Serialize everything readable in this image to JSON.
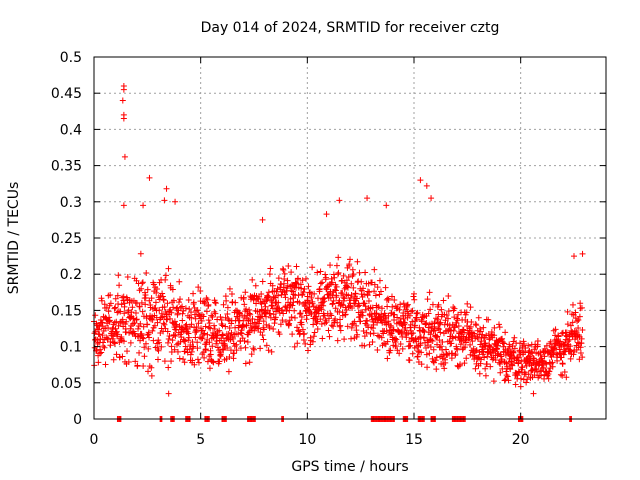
{
  "chart_data": {
    "type": "scatter",
    "title": "Day 014 of 2024, SRMTID for receiver cztg",
    "xlabel": "GPS time / hours",
    "ylabel": "SRMTID / TECUs",
    "xlim": [
      0,
      24
    ],
    "ylim": [
      0,
      0.5
    ],
    "xticks": [
      0,
      5,
      10,
      15,
      20
    ],
    "xtick_labels": [
      "0",
      "5",
      "10",
      "15",
      "20"
    ],
    "yticks": [
      0,
      0.05,
      0.1,
      0.15,
      0.2,
      0.25,
      0.3,
      0.35,
      0.4,
      0.45,
      0.5
    ],
    "ytick_labels": [
      "0",
      "0.05",
      "0.1",
      "0.15",
      "0.2",
      "0.25",
      "0.3",
      "0.35",
      "0.4",
      "0.45",
      "0.5"
    ],
    "grid": true,
    "marker": "+",
    "marker_color": "#ff0000",
    "series": [
      {
        "name": "SRMTID",
        "envelope_hours": [
          0,
          1,
          2,
          3,
          4,
          5,
          6,
          7,
          8,
          9,
          10,
          11,
          12,
          13,
          14,
          15,
          16,
          17,
          18,
          19,
          20,
          21,
          22,
          23
        ],
        "envelope_median": [
          0.12,
          0.13,
          0.14,
          0.14,
          0.13,
          0.12,
          0.12,
          0.13,
          0.15,
          0.16,
          0.15,
          0.16,
          0.17,
          0.15,
          0.13,
          0.12,
          0.12,
          0.12,
          0.1,
          0.09,
          0.08,
          0.08,
          0.1,
          0.12
        ],
        "envelope_spread": [
          0.04,
          0.05,
          0.07,
          0.07,
          0.06,
          0.05,
          0.05,
          0.05,
          0.05,
          0.05,
          0.05,
          0.06,
          0.05,
          0.05,
          0.04,
          0.05,
          0.05,
          0.05,
          0.04,
          0.04,
          0.03,
          0.03,
          0.04,
          0.05
        ],
        "outliers": [
          {
            "x": 1.4,
            "y": 0.46
          },
          {
            "x": 1.4,
            "y": 0.455
          },
          {
            "x": 1.35,
            "y": 0.44
          },
          {
            "x": 1.4,
            "y": 0.42
          },
          {
            "x": 1.4,
            "y": 0.415
          },
          {
            "x": 1.45,
            "y": 0.362
          },
          {
            "x": 1.4,
            "y": 0.295
          },
          {
            "x": 2.6,
            "y": 0.333
          },
          {
            "x": 3.4,
            "y": 0.318
          },
          {
            "x": 3.3,
            "y": 0.302
          },
          {
            "x": 2.3,
            "y": 0.295
          },
          {
            "x": 3.8,
            "y": 0.3
          },
          {
            "x": 10.9,
            "y": 0.283
          },
          {
            "x": 12.8,
            "y": 0.305
          },
          {
            "x": 13.7,
            "y": 0.295
          },
          {
            "x": 15.3,
            "y": 0.33
          },
          {
            "x": 15.6,
            "y": 0.322
          },
          {
            "x": 15.8,
            "y": 0.305
          },
          {
            "x": 22.5,
            "y": 0.225
          },
          {
            "x": 22.9,
            "y": 0.228
          },
          {
            "x": 7.9,
            "y": 0.275
          },
          {
            "x": 11.5,
            "y": 0.302
          },
          {
            "x": 3.5,
            "y": 0.035
          },
          {
            "x": 20.6,
            "y": 0.035
          }
        ],
        "zero_segments": [
          [
            1.1,
            1.3
          ],
          [
            3.1,
            3.2
          ],
          [
            3.6,
            3.8
          ],
          [
            4.3,
            4.5
          ],
          [
            5.2,
            5.4
          ],
          [
            6.0,
            6.2
          ],
          [
            7.2,
            7.6
          ],
          [
            8.8,
            8.9
          ],
          [
            13.0,
            14.1
          ],
          [
            14.5,
            14.7
          ],
          [
            15.2,
            15.5
          ],
          [
            15.8,
            16.0
          ],
          [
            16.8,
            17.4
          ],
          [
            19.9,
            20.1
          ],
          [
            22.3,
            22.4
          ]
        ]
      }
    ]
  }
}
